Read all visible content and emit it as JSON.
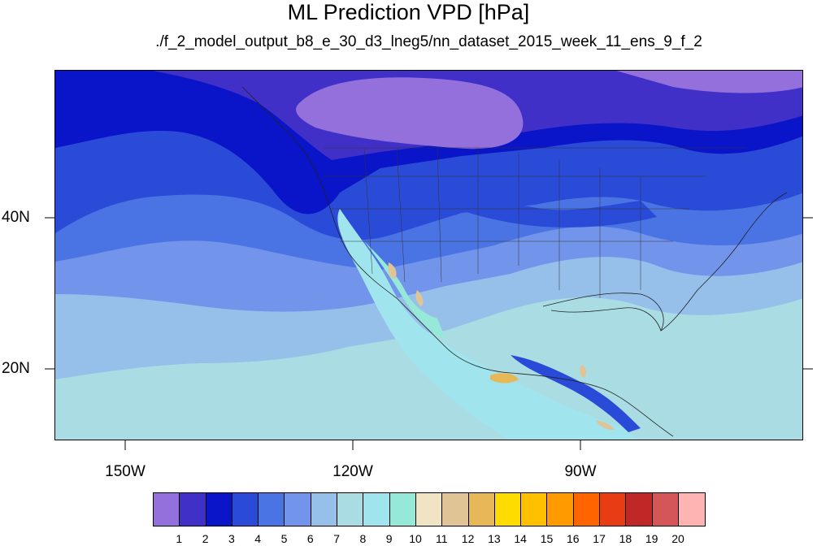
{
  "title": "ML Prediction VPD [hPa]",
  "subtitle": "./f_2_model_output_b8_e_30_d3_lneg5/nn_dataset_2015_week_11_ens_9_f_2",
  "lat_labels": [
    "40N",
    "20N"
  ],
  "lon_labels": [
    "150W",
    "120W",
    "90W"
  ],
  "colorbar": {
    "colors": [
      "#9370db",
      "#4030c8",
      "#0a14c8",
      "#2a4ad8",
      "#4a74e4",
      "#7294ea",
      "#96c0ea",
      "#aadce4",
      "#a0e4ee",
      "#96e8d8",
      "#f0e4c4",
      "#e0c496",
      "#e6b858",
      "#ffdc00",
      "#ffc000",
      "#ff9a00",
      "#ff6400",
      "#e83c14",
      "#c02828",
      "#d45656",
      "#ffb4b4"
    ],
    "labels": [
      "1",
      "2",
      "3",
      "4",
      "5",
      "6",
      "7",
      "8",
      "9",
      "10",
      "11",
      "12",
      "13",
      "14",
      "15",
      "16",
      "17",
      "18",
      "19",
      "20"
    ]
  }
}
